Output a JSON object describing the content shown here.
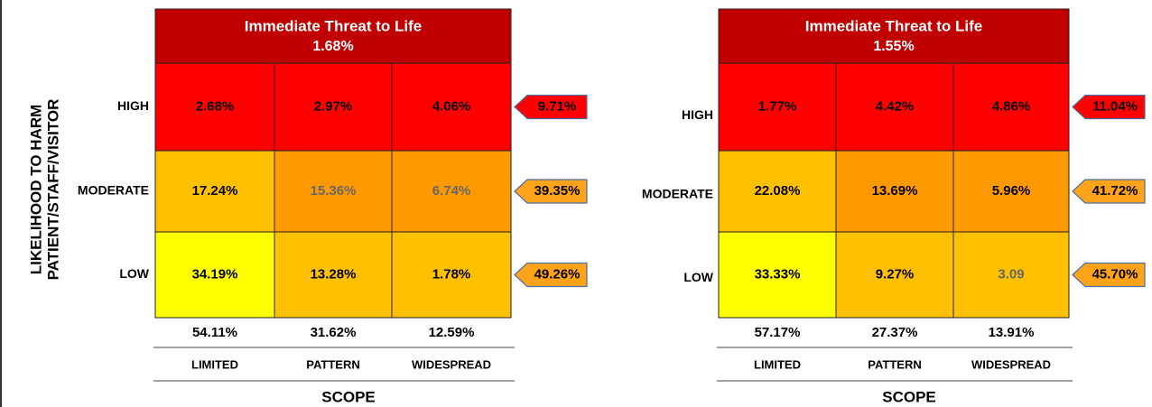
{
  "y_axis_label": [
    "LIKELIHOOD TO HARM",
    "PATIENT/STAFF/VISITOR"
  ],
  "matrices": [
    {
      "header": {
        "title": "Immediate Threat to Life",
        "value": "1.68%"
      },
      "rows": [
        {
          "label": "HIGH",
          "cells": [
            "2.68%",
            "2.97%",
            "4.06%"
          ],
          "total": "9.71%"
        },
        {
          "label": "MODERATE",
          "cells": [
            "17.24%",
            "15.36%",
            "6.74%"
          ],
          "total": "39.35%"
        },
        {
          "label": "LOW",
          "cells": [
            "34.19%",
            "13.28%",
            "1.78%"
          ],
          "total": "49.26%"
        }
      ],
      "column_totals": [
        "54.11%",
        "31.62%",
        "12.59%"
      ],
      "columns": [
        "LIMITED",
        "PATTERN",
        "WIDESPREAD"
      ],
      "x_axis_label": "SCOPE"
    },
    {
      "header": {
        "title": "Immediate Threat to Life",
        "value": "1.55%"
      },
      "rows": [
        {
          "label": "HIGH",
          "cells": [
            "1.77%",
            "4.42%",
            "4.86%"
          ],
          "total": "11.04%"
        },
        {
          "label": "MODERATE",
          "cells": [
            "22.08%",
            "13.69%",
            "5.96%"
          ],
          "total": "41.72%"
        },
        {
          "label": "LOW",
          "cells": [
            "33.33%",
            "9.27%",
            "3.09"
          ],
          "total": "45.70%"
        }
      ],
      "column_totals": [
        "57.17%",
        "27.37%",
        "13.91%"
      ],
      "columns": [
        "LIMITED",
        "PATTERN",
        "WIDESPREAD"
      ],
      "x_axis_label": "SCOPE"
    }
  ]
}
